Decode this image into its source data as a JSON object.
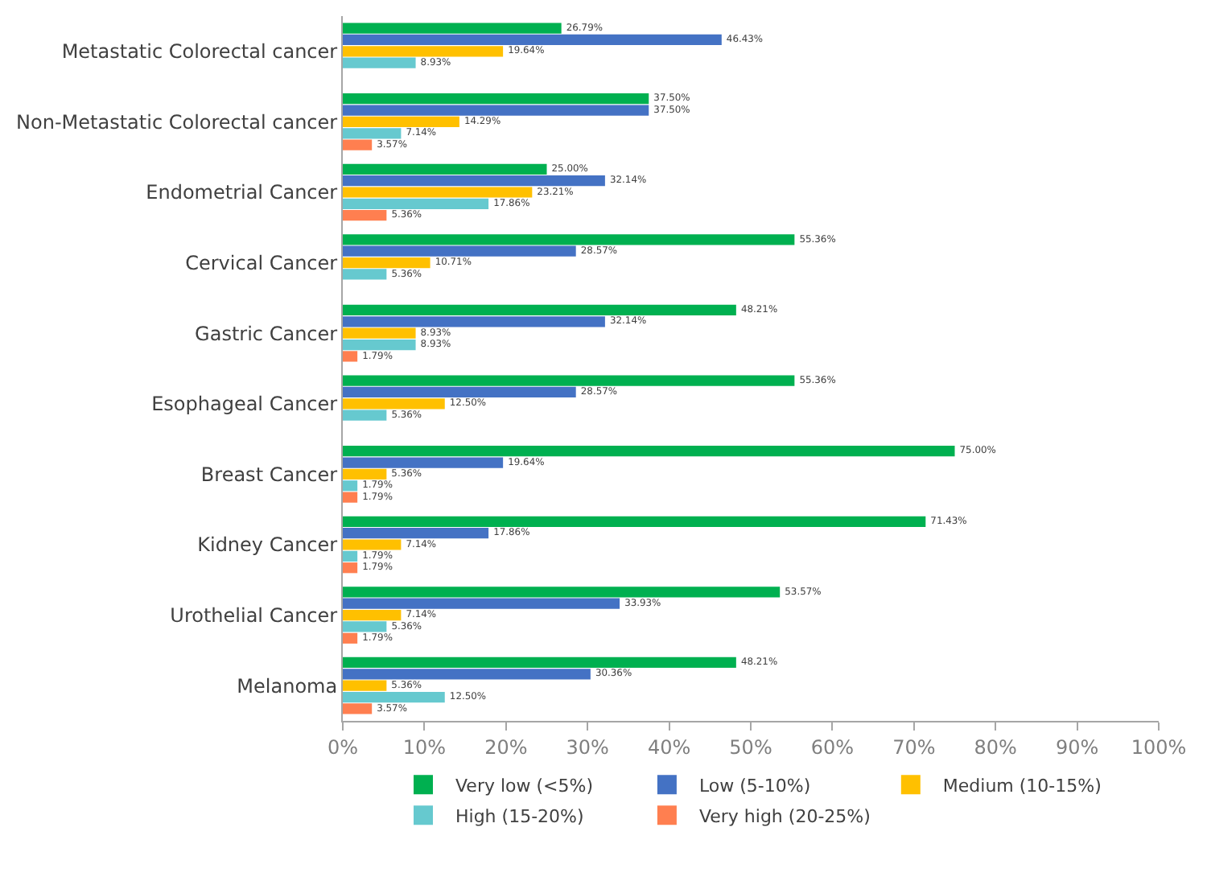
{
  "chart_data": {
    "type": "bar",
    "orientation": "horizontal",
    "categories": [
      "Metastatic Colorectal cancer",
      "Non-Metastatic Colorectal cancer",
      "Endometrial Cancer",
      "Cervical Cancer",
      "Gastric Cancer",
      "Esophageal Cancer",
      "Breast Cancer",
      "Kidney Cancer",
      "Urothelial Cancer",
      "Melanoma"
    ],
    "series": [
      {
        "name": "Very low (<5%)",
        "color": "#00b050",
        "values": [
          26.79,
          37.5,
          25.0,
          55.36,
          48.21,
          55.36,
          75.0,
          71.43,
          53.57,
          48.21
        ],
        "value_labels": [
          "26.79%",
          "37.50%",
          "25.00%",
          "55.36%",
          "48.21%",
          "55.36%",
          "75.00%",
          "71.43%",
          "53.57%",
          "48.21%"
        ]
      },
      {
        "name": "Low (5-10%)",
        "color": "#4472c4",
        "values": [
          46.43,
          37.5,
          32.14,
          28.57,
          32.14,
          28.57,
          19.64,
          17.86,
          33.93,
          30.36
        ],
        "value_labels": [
          "46.43%",
          "37.50%",
          "32.14%",
          "28.57%",
          "32.14%",
          "28.57%",
          "19.64%",
          "17.86%",
          "33.93%",
          "30.36%"
        ]
      },
      {
        "name": "Medium (10-15%)",
        "color": "#ffc000",
        "values": [
          19.64,
          14.29,
          23.21,
          10.71,
          8.93,
          12.5,
          5.36,
          7.14,
          7.14,
          5.36
        ],
        "value_labels": [
          "19.64%",
          "14.29%",
          "23.21%",
          "10.71%",
          "8.93%",
          "12.50%",
          "5.36%",
          "7.14%",
          "7.14%",
          "5.36%"
        ]
      },
      {
        "name": "High (15-20%)",
        "color": "#66c9cf",
        "values": [
          8.93,
          7.14,
          17.86,
          5.36,
          8.93,
          5.36,
          1.79,
          1.79,
          5.36,
          12.5
        ],
        "value_labels": [
          "8.93%",
          "7.14%",
          "17.86%",
          "5.36%",
          "8.93%",
          "5.36%",
          "1.79%",
          "1.79%",
          "5.36%",
          "12.50%"
        ]
      },
      {
        "name": "Very high (20-25%)",
        "color": "#ff7f50",
        "values": [
          null,
          3.57,
          5.36,
          null,
          1.79,
          null,
          1.79,
          1.79,
          1.79,
          3.57
        ],
        "value_labels": [
          null,
          "3.57%",
          "5.36%",
          null,
          "1.79%",
          null,
          "1.79%",
          "1.79%",
          "1.79%",
          "3.57%"
        ]
      }
    ],
    "xlim": [
      0,
      100
    ],
    "xticks": [
      {
        "value": 0,
        "label": "0%"
      },
      {
        "value": 10,
        "label": "10%"
      },
      {
        "value": 20,
        "label": "20%"
      },
      {
        "value": 30,
        "label": "30%"
      },
      {
        "value": 40,
        "label": "40%"
      },
      {
        "value": 50,
        "label": "50%"
      },
      {
        "value": 60,
        "label": "60%"
      },
      {
        "value": 70,
        "label": "70%"
      },
      {
        "value": 80,
        "label": "80%"
      },
      {
        "value": 90,
        "label": "90%"
      },
      {
        "value": 100,
        "label": "100%"
      }
    ],
    "grid": false,
    "legend": "bottom"
  }
}
